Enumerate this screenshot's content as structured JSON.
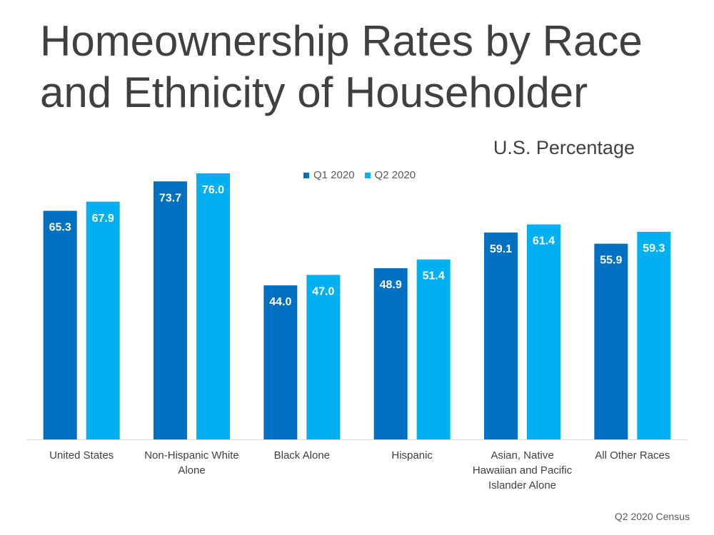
{
  "title": "Homeownership Rates by Race and Ethnicity of Householder",
  "subtitle": "U.S. Percentage",
  "source": "Q2 2020 Census",
  "colors": {
    "q1": "#0070C0",
    "q2": "#00B0F0",
    "axis": "#d9d9d9"
  },
  "chart_data": {
    "type": "bar",
    "title": "Homeownership Rates by Race and Ethnicity of Householder",
    "subtitle": "U.S. Percentage",
    "categories": [
      [
        "United States"
      ],
      [
        "Non-Hispanic White",
        "Alone"
      ],
      [
        "Black Alone"
      ],
      [
        "Hispanic"
      ],
      [
        "Asian, Native",
        "Hawaiian and Pacific",
        "Islander Alone"
      ],
      [
        "All Other Races"
      ]
    ],
    "series": [
      {
        "name": "Q1 2020",
        "values": [
          65.3,
          73.7,
          44.0,
          48.9,
          59.1,
          55.9
        ]
      },
      {
        "name": "Q2 2020",
        "values": [
          67.9,
          76.0,
          47.0,
          51.4,
          61.4,
          59.3
        ]
      }
    ],
    "ylim": [
      0,
      76
    ],
    "legend": "top-center",
    "grid": false,
    "data_labels": true
  }
}
